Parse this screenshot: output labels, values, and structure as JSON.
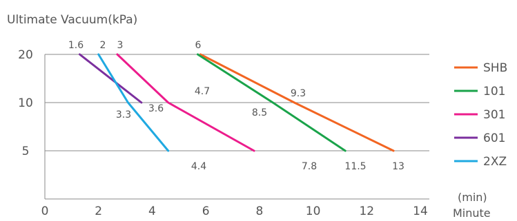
{
  "chart_data": {
    "type": "line",
    "ylabel": "Ultimate Vacuum(kPa)",
    "x_unit": "(min)",
    "xlabel": "Minute",
    "xlim": [
      0,
      14
    ],
    "x_ticks": [
      "0",
      "2",
      "4",
      "6",
      "8",
      "10",
      "12",
      "14"
    ],
    "y_levels": [
      20,
      10,
      5
    ],
    "y_ticks": [
      "20",
      "10",
      "5"
    ],
    "grid": "horizontal",
    "legend_position": "right",
    "series": [
      {
        "name": "SHB",
        "color": "#f26522",
        "points": [
          {
            "x": 5.8,
            "y": 20
          },
          {
            "x": 9.3,
            "y": 10
          },
          {
            "x": 13,
            "y": 5
          }
        ]
      },
      {
        "name": "101",
        "color": "#1aa34a",
        "points": [
          {
            "x": 5.7,
            "y": 20
          },
          {
            "x": 8.5,
            "y": 10
          },
          {
            "x": 11.2,
            "y": 5
          }
        ]
      },
      {
        "name": "301",
        "color": "#ec1c8c",
        "points": [
          {
            "x": 2.7,
            "y": 20
          },
          {
            "x": 4.6,
            "y": 10
          },
          {
            "x": 7.8,
            "y": 5
          }
        ]
      },
      {
        "name": "601",
        "color": "#7b2f9e",
        "points": [
          {
            "x": 1.3,
            "y": 20
          },
          {
            "x": 3.6,
            "y": 10
          }
        ]
      },
      {
        "name": "2XZ",
        "color": "#1fa9e1",
        "points": [
          {
            "x": 2.0,
            "y": 20
          },
          {
            "x": 3.1,
            "y": 10
          },
          {
            "x": 4.6,
            "y": 5
          }
        ]
      }
    ],
    "annotations": [
      "1.6",
      "2",
      "3",
      "6",
      "4.7",
      "9.3",
      "3.3",
      "3.6",
      "8.5",
      "4.4",
      "7.8",
      "11.5",
      "13"
    ]
  }
}
